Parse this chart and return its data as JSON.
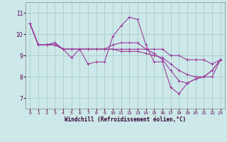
{
  "xlabel": "Windchill (Refroidissement éolien,°C)",
  "bg_color": "#cce8e8",
  "grid_color": "#aacccc",
  "line_color": "#993399",
  "xlim": [
    -0.5,
    23.5
  ],
  "ylim": [
    6.5,
    11.5
  ],
  "yticks": [
    7,
    8,
    9,
    10,
    11
  ],
  "xticks": [
    0,
    1,
    2,
    3,
    4,
    5,
    6,
    7,
    8,
    9,
    10,
    11,
    12,
    13,
    14,
    15,
    16,
    17,
    18,
    19,
    20,
    21,
    22,
    23
  ],
  "series": [
    [
      10.5,
      9.5,
      9.5,
      9.6,
      9.3,
      8.9,
      9.3,
      8.6,
      8.7,
      8.7,
      9.9,
      10.4,
      10.8,
      10.7,
      9.5,
      8.7,
      8.7,
      7.5,
      7.2,
      7.7,
      7.9,
      8.0,
      8.3,
      8.8
    ],
    [
      10.5,
      9.5,
      9.5,
      9.5,
      9.3,
      9.3,
      9.3,
      9.3,
      9.3,
      9.3,
      9.3,
      9.3,
      9.3,
      9.3,
      9.3,
      9.3,
      9.3,
      9.0,
      9.0,
      8.8,
      8.8,
      8.8,
      8.6,
      8.8
    ],
    [
      10.5,
      9.5,
      9.5,
      9.5,
      9.3,
      9.3,
      9.3,
      9.3,
      9.3,
      9.3,
      9.3,
      9.2,
      9.2,
      9.2,
      9.1,
      9.0,
      8.9,
      8.6,
      8.3,
      8.1,
      8.0,
      8.0,
      8.0,
      8.8
    ],
    [
      10.5,
      9.5,
      9.5,
      9.6,
      9.3,
      9.3,
      9.3,
      9.3,
      9.3,
      9.3,
      9.5,
      9.6,
      9.6,
      9.6,
      9.3,
      9.1,
      8.8,
      8.3,
      7.8,
      7.7,
      7.9,
      8.0,
      8.3,
      8.8
    ]
  ]
}
